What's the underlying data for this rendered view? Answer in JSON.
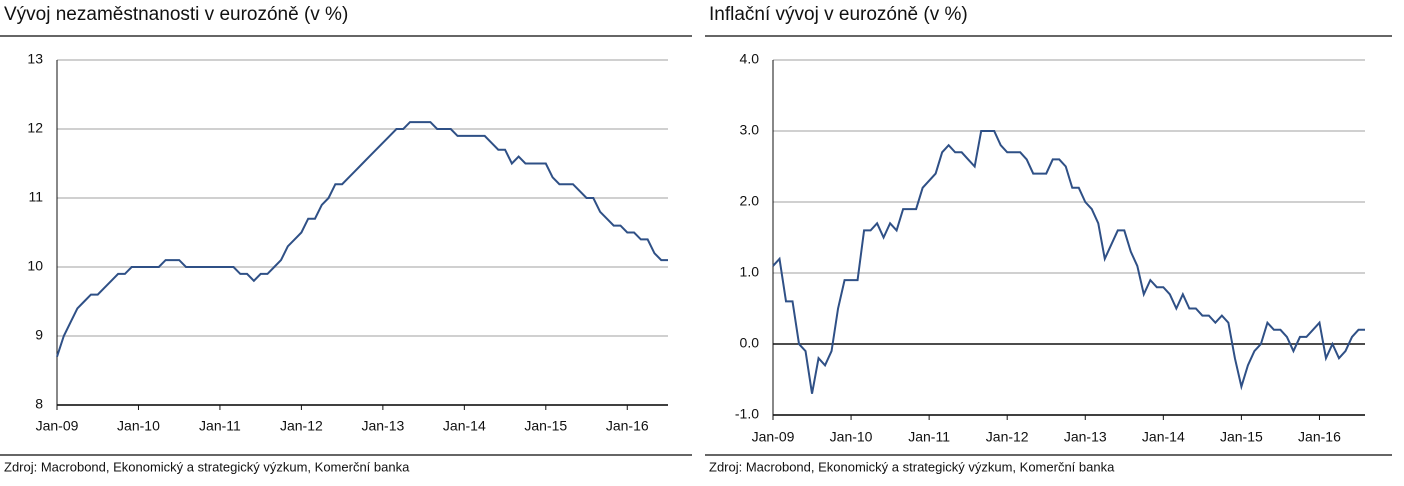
{
  "chart_data": [
    {
      "type": "line",
      "title": "Vývoj nezaměstnanosti v eurozóně (v %)",
      "source": "Zdroj: Macrobond, Ekonomický a strategický výzkum, Komerční banka",
      "categories": [
        "Jan-09",
        null,
        null,
        null,
        null,
        null,
        null,
        null,
        null,
        null,
        null,
        null,
        "Jan-10",
        null,
        null,
        null,
        null,
        null,
        null,
        null,
        null,
        null,
        null,
        null,
        "Jan-11",
        null,
        null,
        null,
        null,
        null,
        null,
        null,
        null,
        null,
        null,
        null,
        "Jan-12",
        null,
        null,
        null,
        null,
        null,
        null,
        null,
        null,
        null,
        null,
        null,
        "Jan-13",
        null,
        null,
        null,
        null,
        null,
        null,
        null,
        null,
        null,
        null,
        null,
        "Jan-14",
        null,
        null,
        null,
        null,
        null,
        null,
        null,
        null,
        null,
        null,
        null,
        "Jan-15",
        null,
        null,
        null,
        null,
        null,
        null,
        null,
        null,
        null,
        null,
        null,
        "Jan-16",
        null,
        null,
        null,
        null,
        null,
        null
      ],
      "series": [
        {
          "color": "#2f5086",
          "values": [
            8.7,
            9.0,
            9.2,
            9.4,
            9.5,
            9.6,
            9.6,
            9.7,
            9.8,
            9.9,
            9.9,
            10.0,
            10.0,
            10.0,
            10.0,
            10.0,
            10.1,
            10.1,
            10.1,
            10.0,
            10.0,
            10.0,
            10.0,
            10.0,
            10.0,
            10.0,
            10.0,
            9.9,
            9.9,
            9.8,
            9.9,
            9.9,
            10.0,
            10.1,
            10.3,
            10.4,
            10.5,
            10.7,
            10.7,
            10.9,
            11.0,
            11.2,
            11.2,
            11.3,
            11.4,
            11.5,
            11.6,
            11.7,
            11.8,
            11.9,
            12.0,
            12.0,
            12.1,
            12.1,
            12.1,
            12.1,
            12.0,
            12.0,
            12.0,
            11.9,
            11.9,
            11.9,
            11.9,
            11.9,
            11.8,
            11.7,
            11.7,
            11.5,
            11.6,
            11.5,
            11.5,
            11.5,
            11.5,
            11.3,
            11.2,
            11.2,
            11.2,
            11.1,
            11.0,
            11.0,
            10.8,
            10.7,
            10.6,
            10.6,
            10.5,
            10.5,
            10.4,
            10.4,
            10.2,
            10.1,
            10.1
          ]
        }
      ],
      "ylim": [
        8,
        13
      ],
      "yticks": [
        8,
        9,
        10,
        11,
        12,
        13
      ],
      "grid": true
    },
    {
      "type": "line",
      "title": "Inflační vývoj v eurozóně (v %)",
      "source": "Zdroj: Macrobond, Ekonomický a strategický výzkum, Komerční banka",
      "categories": [
        "Jan-09",
        null,
        null,
        null,
        null,
        null,
        null,
        null,
        null,
        null,
        null,
        null,
        "Jan-10",
        null,
        null,
        null,
        null,
        null,
        null,
        null,
        null,
        null,
        null,
        null,
        "Jan-11",
        null,
        null,
        null,
        null,
        null,
        null,
        null,
        null,
        null,
        null,
        null,
        "Jan-12",
        null,
        null,
        null,
        null,
        null,
        null,
        null,
        null,
        null,
        null,
        null,
        "Jan-13",
        null,
        null,
        null,
        null,
        null,
        null,
        null,
        null,
        null,
        null,
        null,
        "Jan-14",
        null,
        null,
        null,
        null,
        null,
        null,
        null,
        null,
        null,
        null,
        null,
        "Jan-15",
        null,
        null,
        null,
        null,
        null,
        null,
        null,
        null,
        null,
        null,
        null,
        "Jan-16",
        null,
        null,
        null,
        null,
        null,
        null,
        null
      ],
      "series": [
        {
          "color": "#2f5086",
          "values": [
            1.1,
            1.2,
            0.6,
            0.6,
            0.0,
            -0.1,
            -0.7,
            -0.2,
            -0.3,
            -0.1,
            0.5,
            0.9,
            0.9,
            0.9,
            1.6,
            1.6,
            1.7,
            1.5,
            1.7,
            1.6,
            1.9,
            1.9,
            1.9,
            2.2,
            2.3,
            2.4,
            2.7,
            2.8,
            2.7,
            2.7,
            2.6,
            2.5,
            3.0,
            3.0,
            3.0,
            2.8,
            2.7,
            2.7,
            2.7,
            2.6,
            2.4,
            2.4,
            2.4,
            2.6,
            2.6,
            2.5,
            2.2,
            2.2,
            2.0,
            1.9,
            1.7,
            1.2,
            1.4,
            1.6,
            1.6,
            1.3,
            1.1,
            0.7,
            0.9,
            0.8,
            0.8,
            0.7,
            0.5,
            0.7,
            0.5,
            0.5,
            0.4,
            0.4,
            0.3,
            0.4,
            0.3,
            -0.2,
            -0.6,
            -0.3,
            -0.1,
            0.0,
            0.3,
            0.2,
            0.2,
            0.1,
            -0.1,
            0.1,
            0.1,
            0.2,
            0.3,
            -0.2,
            0.0,
            -0.2,
            -0.1,
            0.1,
            0.2,
            0.2
          ]
        }
      ],
      "ylim": [
        -1,
        4
      ],
      "yticks": [
        {
          "value": -1,
          "label": "-1.0"
        },
        {
          "value": 0,
          "label": "0.0"
        },
        {
          "value": 1,
          "label": "1.0"
        },
        {
          "value": 2,
          "label": "2.0"
        },
        {
          "value": 3,
          "label": "3.0"
        },
        {
          "value": 4,
          "label": "4.0"
        }
      ],
      "grid": true
    }
  ]
}
